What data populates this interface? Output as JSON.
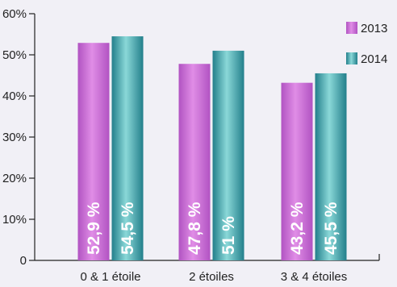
{
  "chart_data": {
    "type": "bar",
    "title": "",
    "xlabel": "",
    "ylabel": "",
    "categories": [
      "0 & 1 étoile",
      "2 étoiles",
      "3 & 4 étoiles"
    ],
    "series": [
      {
        "name": "2013",
        "values": [
          52.9,
          47.8,
          43.2
        ],
        "labels": [
          "52,9 %",
          "47,8 %",
          "43,2 %"
        ],
        "color_light": "#e08de6",
        "color_dark": "#b153c2"
      },
      {
        "name": "2014",
        "values": [
          54.5,
          51,
          45.5
        ],
        "labels": [
          "54,5 %",
          "51 %",
          "45,5 %"
        ],
        "color_light": "#8ad8d8",
        "color_dark": "#237f8b"
      }
    ],
    "yticks": [
      "0",
      "10%",
      "20%",
      "30%",
      "40%",
      "50%",
      "60%"
    ],
    "ylim": [
      0,
      60
    ],
    "grid": false,
    "legend_position": "top-right",
    "background": "#f1f0f6"
  }
}
